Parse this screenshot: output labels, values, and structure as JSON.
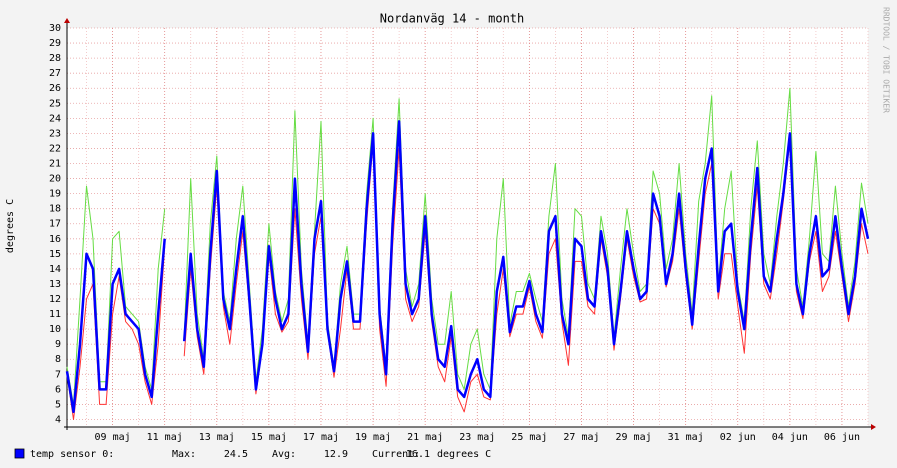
{
  "chart_data": {
    "type": "line",
    "title": "Nordanväg 14 - month",
    "y_label": "degrees C",
    "watermark": "RRDTOOL / TOBI OETIKER",
    "ylim": [
      3.5,
      30
    ],
    "yticks": [
      4,
      5,
      6,
      7,
      8,
      9,
      10,
      11,
      12,
      13,
      14,
      15,
      16,
      17,
      18,
      19,
      20,
      21,
      22,
      23,
      24,
      25,
      26,
      27,
      28,
      29,
      30
    ],
    "grid": true,
    "categories": [
      null,
      null,
      null,
      null,
      null,
      null,
      null,
      "09 maj",
      null,
      null,
      null,
      null,
      null,
      null,
      null,
      "11 maj",
      null,
      null,
      null,
      null,
      null,
      null,
      null,
      "13 maj",
      null,
      null,
      null,
      null,
      null,
      null,
      null,
      "15 maj",
      null,
      null,
      null,
      null,
      null,
      null,
      null,
      "17 maj",
      null,
      null,
      null,
      null,
      null,
      null,
      null,
      "19 maj",
      null,
      null,
      null,
      null,
      null,
      null,
      null,
      "21 maj",
      null,
      null,
      null,
      null,
      null,
      null,
      null,
      "23 maj",
      null,
      null,
      null,
      null,
      null,
      null,
      null,
      "25 maj",
      null,
      null,
      null,
      null,
      null,
      null,
      null,
      "27 maj",
      null,
      null,
      null,
      null,
      null,
      null,
      null,
      "29 maj",
      null,
      null,
      null,
      null,
      null,
      null,
      null,
      "31 maj",
      null,
      null,
      null,
      null,
      null,
      null,
      null,
      "02 jun",
      null,
      null,
      null,
      null,
      null,
      null,
      null,
      "04 jun",
      null,
      null,
      null,
      null,
      null,
      null,
      null,
      "06 jun",
      null,
      null,
      null,
      null
    ],
    "series": [
      {
        "color": "#66dd44",
        "width": 1,
        "values": [
          7.5,
          5,
          12,
          19.5,
          16,
          6.5,
          6.5,
          16,
          16.5,
          11.5,
          11,
          10.5,
          7.5,
          6,
          14,
          18,
          null,
          null,
          9.5,
          20,
          11,
          8,
          17,
          21.5,
          12.5,
          10.5,
          16,
          19.5,
          13,
          6.5,
          10,
          17,
          12.5,
          10.5,
          12,
          24.5,
          14,
          9,
          16.5,
          23.8,
          10.5,
          7.5,
          13,
          15.5,
          11,
          11,
          19,
          24,
          11.5,
          7.5,
          18,
          25.3,
          14,
          11.5,
          13,
          19,
          12,
          9,
          9,
          12.5,
          7,
          6,
          9,
          10,
          7,
          6,
          16,
          20,
          10.3,
          12.5,
          12.5,
          13.7,
          12,
          10.5,
          17.5,
          21,
          12,
          9.5,
          18,
          17.5,
          13,
          12,
          17.5,
          15,
          9.5,
          14,
          18,
          15,
          12.5,
          13,
          20.5,
          19,
          14,
          16,
          21,
          15,
          11,
          18.5,
          21,
          25.5,
          13,
          18,
          20.5,
          13,
          10.5,
          18,
          22.5,
          15,
          13,
          17.5,
          21,
          26,
          14,
          11.5,
          16,
          21.8,
          15,
          14.5,
          19.5,
          15,
          11.5,
          14.5,
          19.7,
          17
        ]
      },
      {
        "color": "#ff3333",
        "width": 1,
        "values": [
          7,
          4,
          7.5,
          12,
          13,
          5,
          5,
          11,
          13.5,
          10.5,
          10,
          9,
          6.5,
          5,
          9,
          15.5,
          null,
          null,
          8.2,
          14,
          9.5,
          7,
          14,
          19.5,
          11.5,
          9,
          13,
          16.5,
          11.5,
          5.7,
          8.8,
          15,
          11,
          9.8,
          10.5,
          18,
          12,
          8,
          15,
          17.5,
          9.8,
          6.8,
          10,
          14,
          10,
          10,
          17,
          22.5,
          10,
          6.2,
          15.5,
          22,
          12,
          10.5,
          11.5,
          16.5,
          10.5,
          7.5,
          6.5,
          9.5,
          5.5,
          4.5,
          6.5,
          7,
          5.5,
          5.3,
          11,
          14,
          9.5,
          11,
          11,
          12.8,
          10.5,
          9.4,
          15,
          16,
          10.5,
          7.6,
          14.5,
          14.5,
          11.5,
          11,
          16,
          13.5,
          8.6,
          12,
          16,
          13.5,
          11.8,
          12,
          18,
          17,
          12.8,
          14.5,
          18,
          13.5,
          10,
          14.5,
          19,
          21,
          12,
          15,
          15,
          11.5,
          8.4,
          15,
          19.5,
          13,
          12,
          15,
          18.5,
          22.5,
          12.5,
          10.7,
          14.5,
          16.5,
          12.5,
          13.5,
          16.5,
          13.5,
          10.5,
          13,
          17,
          15
        ]
      },
      {
        "name": "temp sensor 0:",
        "color": "#0000ff",
        "width": 2.5,
        "values": [
          7.2,
          4.5,
          9,
          15,
          14,
          6,
          6,
          13,
          14,
          11,
          10.5,
          10,
          7,
          5.5,
          11,
          16,
          null,
          null,
          9.2,
          15,
          10,
          7.5,
          15,
          20.5,
          12,
          10,
          14,
          17.5,
          12,
          6,
          9,
          15.5,
          12,
          10,
          11,
          20,
          13,
          8.5,
          16,
          18.5,
          10,
          7.2,
          12,
          14.5,
          10.5,
          10.5,
          18,
          23,
          11,
          7,
          17,
          23.8,
          13,
          11,
          12,
          17.5,
          11,
          8,
          7.5,
          10.2,
          6,
          5.5,
          7,
          8,
          6,
          5.5,
          12.5,
          14.8,
          9.8,
          11.5,
          11.5,
          13.2,
          11,
          9.8,
          16.5,
          17.5,
          11,
          9,
          16,
          15.5,
          12,
          11.5,
          16.5,
          14,
          9,
          12.5,
          16.5,
          14,
          12,
          12.5,
          19,
          17.5,
          13,
          15,
          19,
          14,
          10.3,
          15.5,
          20,
          22,
          12.5,
          16.5,
          17,
          12.5,
          10,
          16,
          20.7,
          13.5,
          12.5,
          16,
          19,
          23,
          13,
          11,
          15,
          17.5,
          13.5,
          14,
          17.5,
          14,
          11,
          13.5,
          18,
          16
        ]
      }
    ],
    "legend_stats": [
      {
        "name": "Max:",
        "value": 24.5
      },
      {
        "name": "Avg:",
        "value": 12.9
      },
      {
        "name": "Current:",
        "value": 16.1
      }
    ],
    "unit": "degrees C"
  }
}
